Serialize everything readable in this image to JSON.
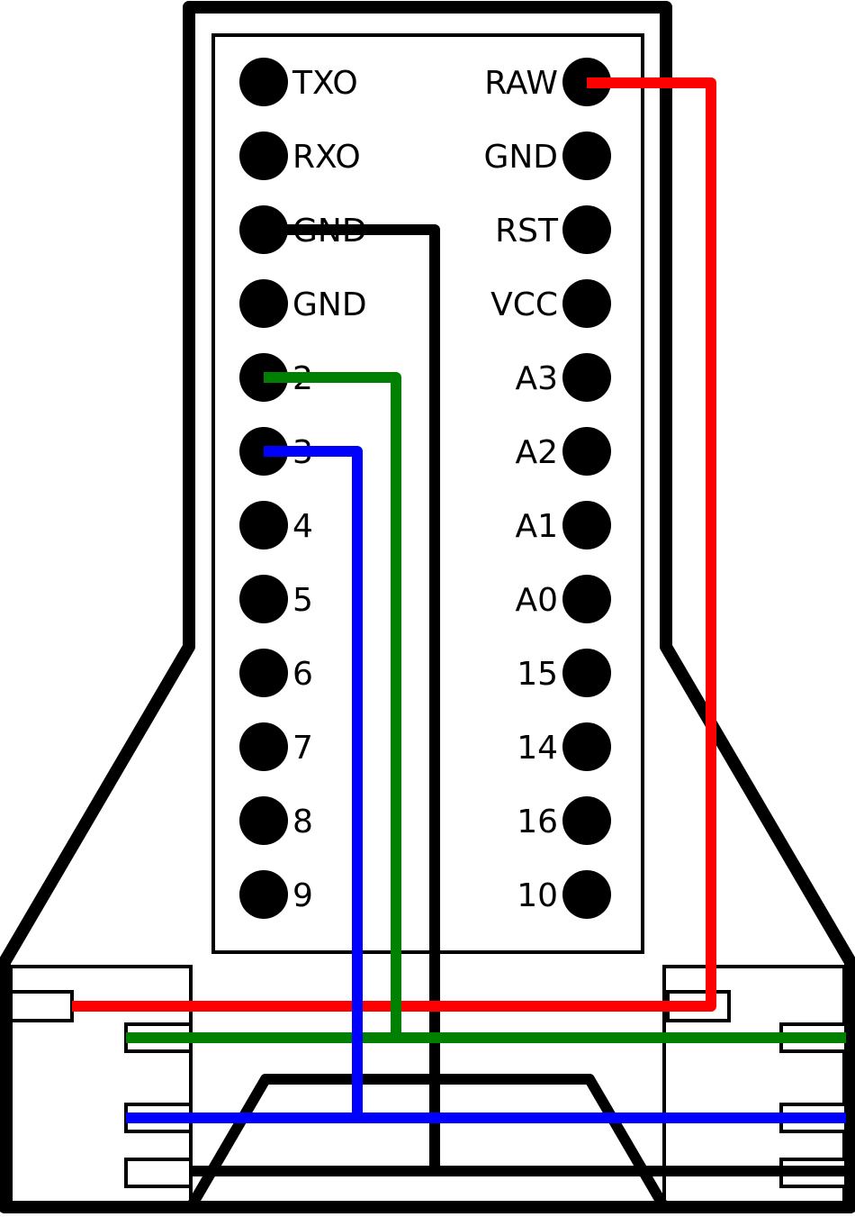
{
  "board": {
    "left_pins": [
      "TXO",
      "RXO",
      "GND",
      "GND",
      "2",
      "3",
      "4",
      "5",
      "6",
      "7",
      "8",
      "9"
    ],
    "right_pins": [
      "RAW",
      "GND",
      "RST",
      "VCC",
      "A3",
      "A2",
      "A1",
      "A0",
      "15",
      "14",
      "16",
      "10"
    ]
  },
  "wires": [
    {
      "name": "wire-red",
      "color": "#ff0000",
      "from": "RAW"
    },
    {
      "name": "wire-black",
      "color": "#000000",
      "from": "GND"
    },
    {
      "name": "wire-green",
      "color": "#008000",
      "from": "2"
    },
    {
      "name": "wire-blue",
      "color": "#0000ff",
      "from": "3"
    }
  ]
}
